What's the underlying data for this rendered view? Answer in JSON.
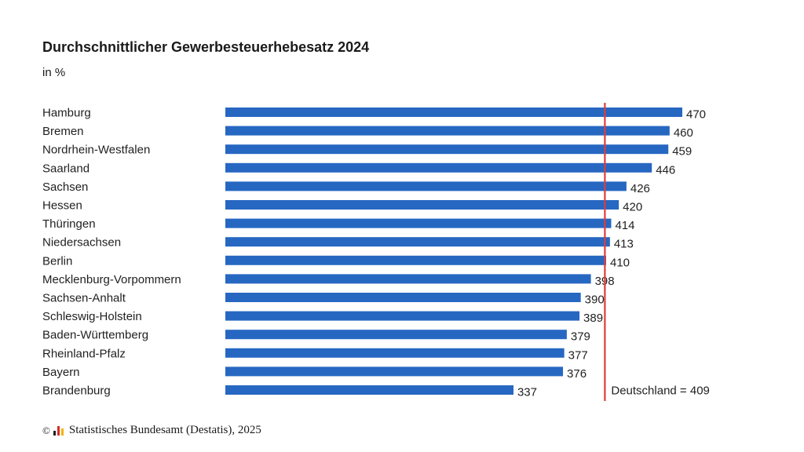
{
  "header": {
    "title": "Durchschnittlicher Gewerbesteuerhebesatz 2024",
    "subtitle": "in %"
  },
  "footer": {
    "copyright_symbol": "©",
    "source": "Statistisches Bundesamt (Destatis), 2025"
  },
  "colors": {
    "bar": "#2667c2",
    "reference_line": "#e03c3c",
    "logo": [
      "#1f1f1f",
      "#d62b2b",
      "#f0b400"
    ]
  },
  "chart_data": {
    "type": "bar",
    "orientation": "horizontal",
    "title": "Durchschnittlicher Gewerbesteuerhebesatz 2024",
    "subtitle": "in %",
    "categories": [
      "Hamburg",
      "Bremen",
      "Nordrhein-Westfalen",
      "Saarland",
      "Sachsen",
      "Hessen",
      "Thüringen",
      "Niedersachsen",
      "Berlin",
      "Mecklenburg-Vorpommern",
      "Sachsen-Anhalt",
      "Schleswig-Holstein",
      "Baden-Württemberg",
      "Rheinland-Pfalz",
      "Bayern",
      "Brandenburg"
    ],
    "values": [
      470,
      460,
      459,
      446,
      426,
      420,
      414,
      413,
      410,
      398,
      390,
      389,
      379,
      377,
      376,
      337
    ],
    "data_labels": [
      "470",
      "460",
      "459",
      "446",
      "426",
      "420",
      "414",
      "413",
      "410",
      "398",
      "390",
      "389",
      "379",
      "377",
      "376",
      "337"
    ],
    "reference_line": {
      "value": 409,
      "label": "Deutschland = 409"
    },
    "xlim": [
      110,
      470
    ],
    "grid": false,
    "legend": false
  }
}
